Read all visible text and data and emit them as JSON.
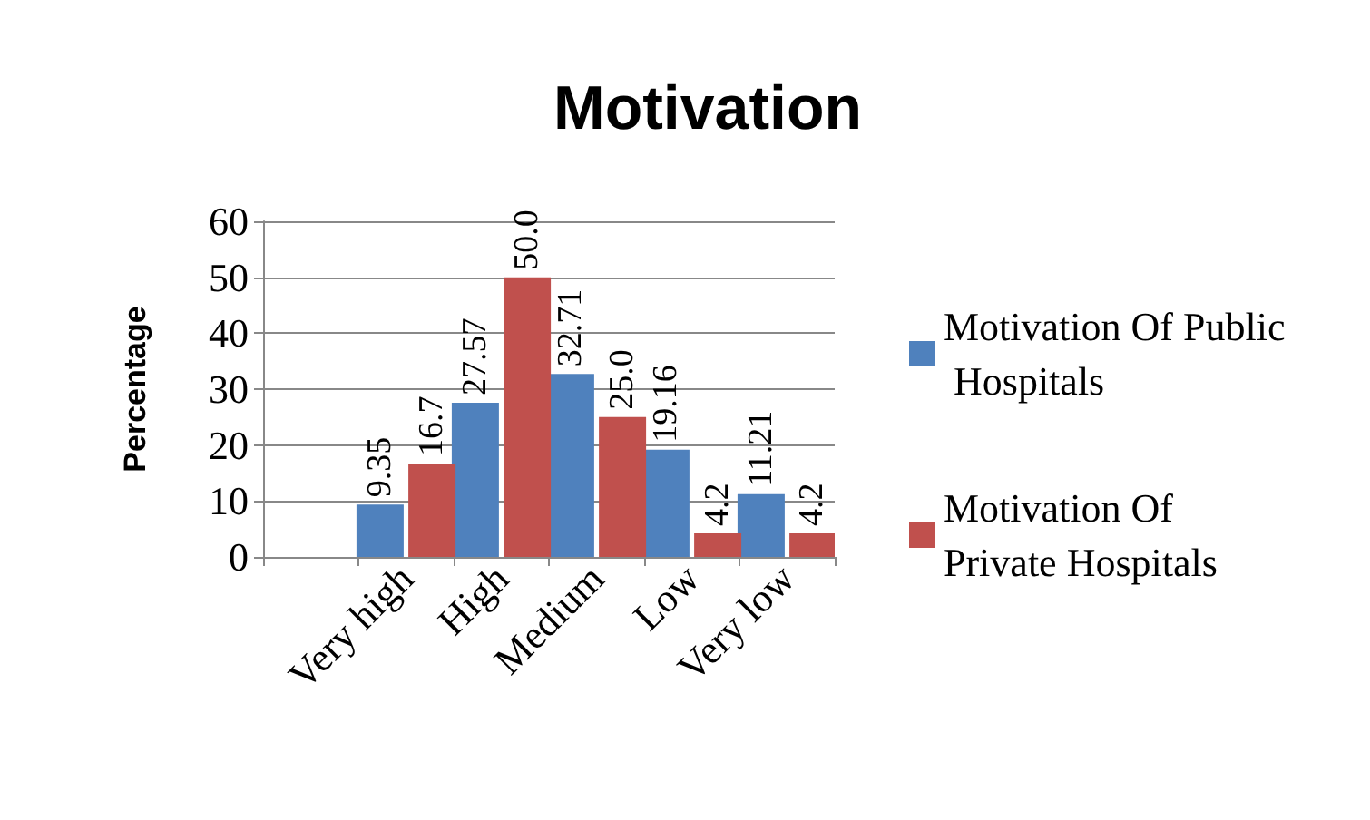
{
  "chart_data": {
    "type": "bar",
    "title": "Motivation",
    "ylabel": "Percentage",
    "categories": [
      null,
      "Very high",
      "High",
      "Medium",
      "Low",
      "Very low"
    ],
    "series": [
      {
        "name": "Motivation Of Public Hospitals",
        "color": "#4f81bd",
        "values": [
          null,
          9.35,
          27.57,
          32.71,
          19.16,
          11.21
        ],
        "value_labels": [
          null,
          "9.35",
          "27.57",
          "32.71",
          "19.16",
          "11.21"
        ]
      },
      {
        "name": "Motivation Of Private Hospitals",
        "color": "#c0504d",
        "values": [
          null,
          16.7,
          50.0,
          25.0,
          4.2,
          4.2
        ],
        "value_labels": [
          null,
          "16.7",
          "50.0",
          "25.0",
          "4.2",
          "4.2"
        ]
      }
    ],
    "ylim": [
      0,
      60
    ],
    "yticks": [
      0,
      10,
      20,
      30,
      40,
      50,
      60
    ],
    "grid": "y",
    "legend": "right"
  }
}
